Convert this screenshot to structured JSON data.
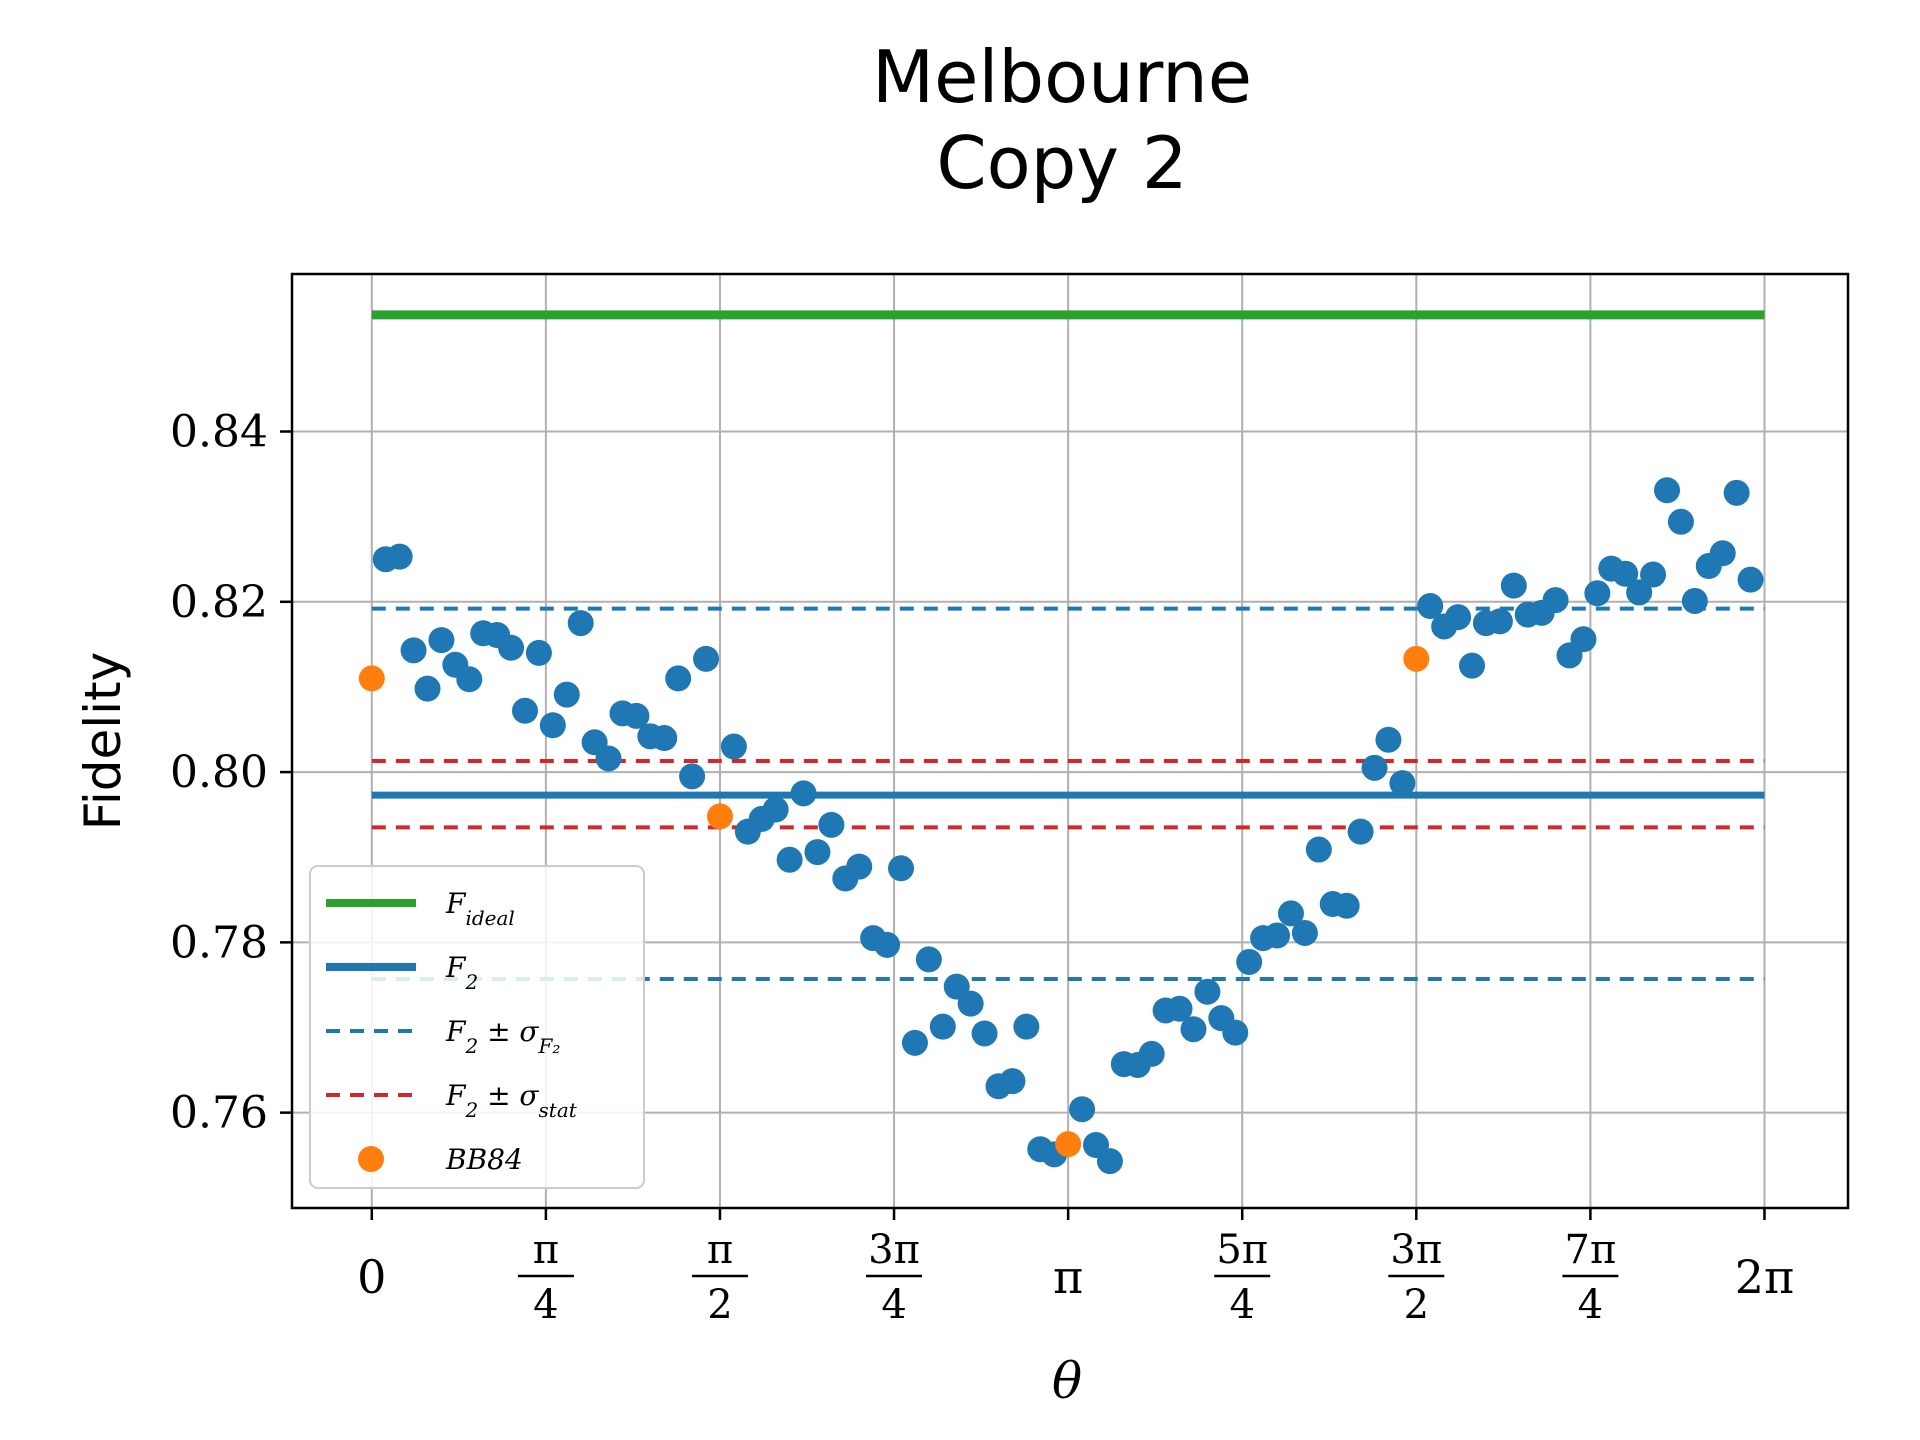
{
  "chart_data": {
    "type": "scatter",
    "title_lines": [
      "Melbourne",
      "Copy 2"
    ],
    "xlabel": "θ",
    "ylabel": "Fidelity",
    "xlim": [
      -0.36,
      6.66
    ],
    "ylim": [
      0.7488,
      0.8585
    ],
    "grid": true,
    "legend_position": "lower-left",
    "y_ticks": [
      {
        "value": 0.76,
        "label": "0.76"
      },
      {
        "value": 0.78,
        "label": "0.78"
      },
      {
        "value": 0.8,
        "label": "0.80"
      },
      {
        "value": 0.82,
        "label": "0.82"
      },
      {
        "value": 0.84,
        "label": "0.84"
      }
    ],
    "x_ticks": [
      {
        "value": 0,
        "label": "0"
      },
      {
        "value": 0.7854,
        "num": "π",
        "den": "4"
      },
      {
        "value": 1.5708,
        "num": "π",
        "den": "2"
      },
      {
        "value": 2.3562,
        "num": "3π",
        "den": "4"
      },
      {
        "value": 3.1416,
        "label": "π"
      },
      {
        "value": 3.927,
        "num": "5π",
        "den": "4"
      },
      {
        "value": 4.7124,
        "num": "3π",
        "den": "2"
      },
      {
        "value": 5.4978,
        "num": "7π",
        "den": "4"
      },
      {
        "value": 6.2832,
        "label": "2π"
      }
    ],
    "lines": [
      {
        "name": "F_ideal",
        "y": 0.8537,
        "color": "#2ca02c",
        "style": "solid",
        "width": 9
      },
      {
        "name": "F_2",
        "y": 0.7973,
        "color": "#1f77b4",
        "style": "solid",
        "width": 7
      },
      {
        "name": "F_2_plus_sigma_F2",
        "y": 0.8192,
        "color": "#1f77b4",
        "style": "dashed",
        "width": 4
      },
      {
        "name": "F_2_minus_sigma_F2",
        "y": 0.7757,
        "color": "#1f77b4",
        "style": "dashed",
        "width": 4
      },
      {
        "name": "F_2_plus_sigma_stat",
        "y": 0.8013,
        "color": "#d62728",
        "style": "dashed",
        "width": 4
      },
      {
        "name": "F_2_minus_sigma_stat",
        "y": 0.7935,
        "color": "#d62728",
        "style": "dashed",
        "width": 4
      }
    ],
    "line_x_range": [
      0,
      6.2832
    ],
    "series": [
      {
        "name": "data",
        "color": "#1f77b4",
        "x": [
          0.0628,
          0.1257,
          0.1885,
          0.2513,
          0.3142,
          0.377,
          0.4398,
          0.5027,
          0.5655,
          0.6283,
          0.6912,
          0.754,
          0.8168,
          0.8796,
          0.9425,
          1.0053,
          1.0681,
          1.131,
          1.1938,
          1.2566,
          1.3195,
          1.3823,
          1.4451,
          1.508,
          1.6336,
          1.6965,
          1.7593,
          1.8221,
          1.885,
          1.9478,
          2.0106,
          2.0735,
          2.1363,
          2.1991,
          2.2619,
          2.3248,
          2.3876,
          2.4504,
          2.5133,
          2.5761,
          2.6389,
          2.7018,
          2.7646,
          2.8274,
          2.8903,
          2.9531,
          3.0159,
          3.0788,
          3.2044,
          3.2673,
          3.3301,
          3.3929,
          3.4558,
          3.5186,
          3.5814,
          3.6442,
          3.7071,
          3.7699,
          3.8327,
          3.8956,
          3.9584,
          4.0212,
          4.0841,
          4.1469,
          4.2097,
          4.2726,
          4.3354,
          4.3982,
          4.4611,
          4.5239,
          4.5867,
          4.6496,
          4.7752,
          4.8381,
          4.9009,
          4.9637,
          5.0265,
          5.0894,
          5.1522,
          5.215,
          5.2779,
          5.3407,
          5.4035,
          5.4664,
          5.5292,
          5.592,
          5.6549,
          5.7177,
          5.7805,
          5.8434,
          5.9062,
          5.969,
          6.0319,
          6.0947,
          6.1575,
          6.2204
        ],
        "y": [
          0.825,
          0.8253,
          0.8143,
          0.8098,
          0.8155,
          0.8126,
          0.8109,
          0.8163,
          0.8161,
          0.8146,
          0.8072,
          0.814,
          0.8055,
          0.8091,
          0.8175,
          0.8035,
          0.8016,
          0.8069,
          0.8066,
          0.8042,
          0.804,
          0.811,
          0.7995,
          0.8133,
          0.803,
          0.793,
          0.7945,
          0.7956,
          0.7897,
          0.7975,
          0.7906,
          0.7938,
          0.7875,
          0.7889,
          0.7805,
          0.7797,
          0.7887,
          0.7682,
          0.778,
          0.7701,
          0.7748,
          0.7728,
          0.7693,
          0.7631,
          0.7637,
          0.7701,
          0.7557,
          0.7551,
          0.7604,
          0.7562,
          0.7543,
          0.7657,
          0.7656,
          0.7669,
          0.772,
          0.7722,
          0.7698,
          0.7742,
          0.7711,
          0.7694,
          0.7777,
          0.7805,
          0.7808,
          0.7834,
          0.7811,
          0.7909,
          0.7845,
          0.7843,
          0.793,
          0.8005,
          0.8038,
          0.7987,
          0.8195,
          0.8171,
          0.8182,
          0.8125,
          0.8175,
          0.8177,
          0.8219,
          0.8185,
          0.8187,
          0.8202,
          0.8137,
          0.8156,
          0.821,
          0.8239,
          0.8233,
          0.8211,
          0.8232,
          0.8331,
          0.8294,
          0.8201,
          0.8242,
          0.8257,
          0.8328,
          0.8226
        ]
      },
      {
        "name": "BB84",
        "color": "#ff7f0e",
        "x": [
          0,
          1.5708,
          3.1416,
          4.7124
        ],
        "y": [
          0.811,
          0.7948,
          0.7563,
          0.8133
        ]
      }
    ]
  },
  "legend": {
    "items": [
      {
        "kind": "line",
        "color": "#2ca02c",
        "style": "solid",
        "main": "F",
        "sub": "ideal",
        "tail": ""
      },
      {
        "kind": "line",
        "color": "#1f77b4",
        "style": "solid",
        "main": "F",
        "sub": "2",
        "tail": ""
      },
      {
        "kind": "line",
        "color": "#1f77b4",
        "style": "dashed",
        "main": "F",
        "sub": "2",
        "tail": " ± σ",
        "tail_sub": "F₂"
      },
      {
        "kind": "line",
        "color": "#d62728",
        "style": "dashed",
        "main": "F",
        "sub": "2",
        "tail": " ± σ",
        "tail_sub": "stat"
      },
      {
        "kind": "marker",
        "color": "#ff7f0e",
        "main": "BB84",
        "sub": "",
        "tail": ""
      }
    ]
  }
}
